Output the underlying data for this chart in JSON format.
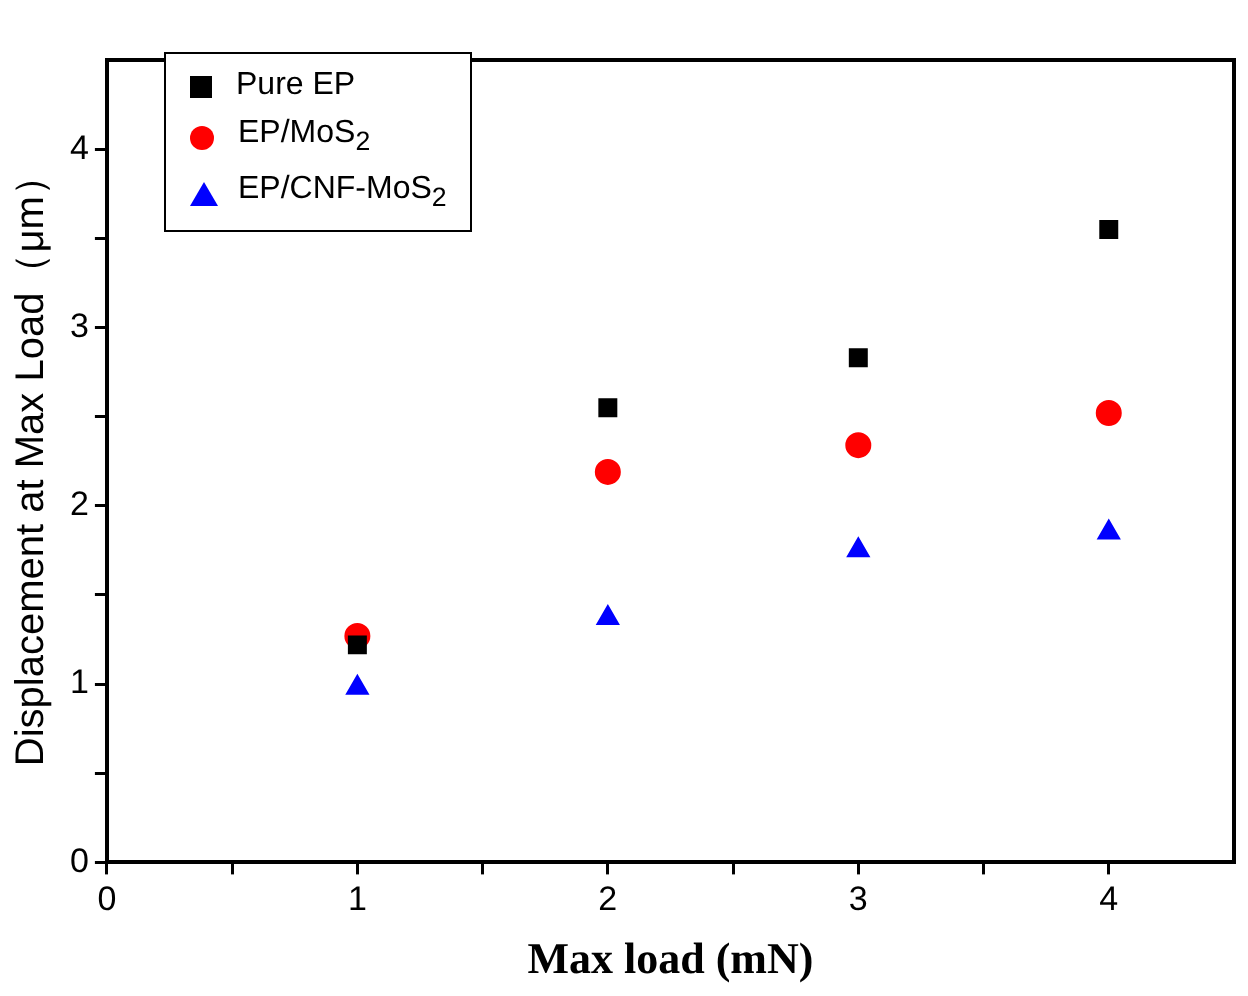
{
  "chart_data": {
    "type": "scatter",
    "xlabel": "Max load (mN)",
    "ylabel": "Displacement at Max Load（μm）",
    "xlim": [
      0,
      4.5
    ],
    "xticks": [
      0,
      {
        "value": 0.5,
        "label": null
      },
      1,
      {
        "value": 1.5,
        "label": null
      },
      2,
      {
        "value": 2.5,
        "label": null
      },
      3,
      {
        "value": 3.5,
        "label": null
      },
      4
    ],
    "ylim": [
      0,
      4.5
    ],
    "yticks": [
      0,
      {
        "value": 0.5,
        "label": null
      },
      1,
      {
        "value": 1.5,
        "label": null
      },
      2,
      {
        "value": 2.5,
        "label": null
      },
      3,
      {
        "value": 3.5,
        "label": null
      },
      4
    ],
    "grid": false,
    "legend": "top left",
    "series": [
      {
        "name": "Pure EP",
        "color": "#000000",
        "marker": "square",
        "x": [
          1,
          2,
          3,
          4
        ],
        "values": [
          1.22,
          2.55,
          2.83,
          3.55
        ]
      },
      {
        "name": "EP/MoS$_{2}$",
        "color": "#ff0000",
        "marker": "circle",
        "x": [
          1,
          2,
          3,
          4
        ],
        "values": [
          1.27,
          2.19,
          2.34,
          2.52
        ]
      },
      {
        "name": "EP/CNF-MoS$_{2}$",
        "color": "#0000ff",
        "marker": "triangle",
        "x": [
          1,
          2,
          3,
          4
        ],
        "values": [
          0.98,
          1.37,
          1.75,
          1.85
        ]
      }
    ]
  }
}
